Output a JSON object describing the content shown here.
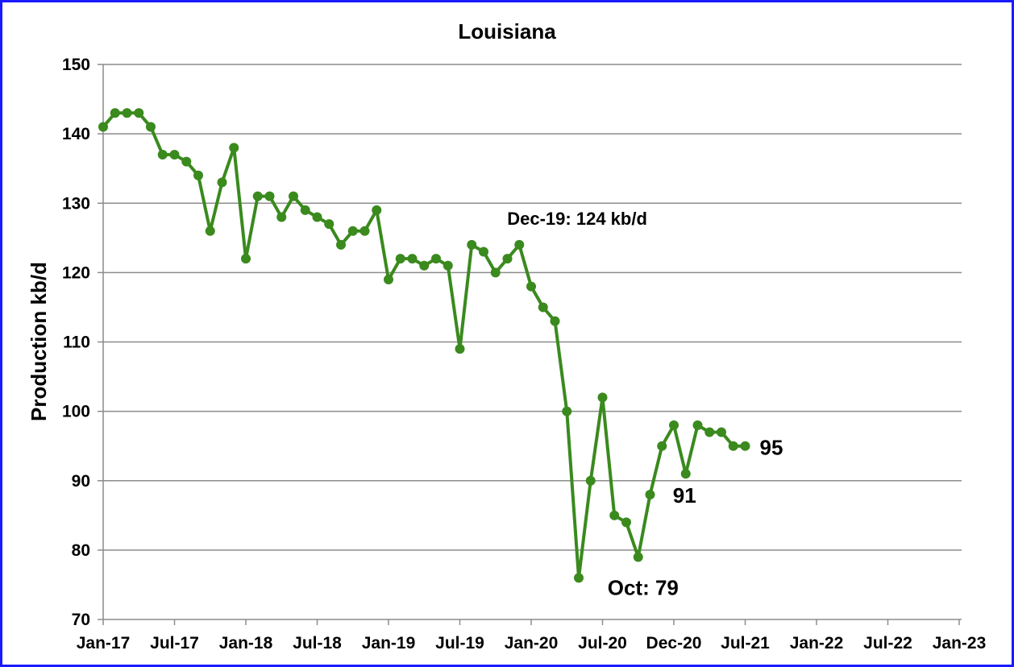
{
  "chart_data": {
    "type": "line",
    "title": "Louisiana",
    "xlabel": "",
    "ylabel": "Production kb/d",
    "ylim": [
      70,
      150
    ],
    "y_ticks": [
      70,
      80,
      90,
      100,
      110,
      120,
      130,
      140,
      150
    ],
    "x_tick_labels": [
      "Jan-17",
      "Jul-17",
      "Jan-18",
      "Jul-18",
      "Jan-19",
      "Jul-19",
      "Jan-20",
      "Jul-20",
      "Dec-20",
      "Jul-21",
      "Jan-22",
      "Jul-22",
      "Jan-23"
    ],
    "grid": "horizontal",
    "color": "#3a8a1e",
    "x": [
      "Jan-17",
      "Feb-17",
      "Mar-17",
      "Apr-17",
      "May-17",
      "Jun-17",
      "Jul-17",
      "Aug-17",
      "Sep-17",
      "Oct-17",
      "Nov-17",
      "Dec-17",
      "Jan-18",
      "Feb-18",
      "Mar-18",
      "Apr-18",
      "May-18",
      "Jun-18",
      "Jul-18",
      "Aug-18",
      "Sep-18",
      "Oct-18",
      "Nov-18",
      "Dec-18",
      "Jan-19",
      "Feb-19",
      "Mar-19",
      "Apr-19",
      "May-19",
      "Jun-19",
      "Jul-19",
      "Aug-19",
      "Sep-19",
      "Oct-19",
      "Nov-19",
      "Dec-19",
      "Jan-20",
      "Feb-20",
      "Mar-20",
      "Apr-20",
      "May-20",
      "Jun-20",
      "Jul-20",
      "Aug-20",
      "Sep-20",
      "Oct-20",
      "Nov-20",
      "Dec-20",
      "Jan-21",
      "Feb-21",
      "Mar-21",
      "Apr-21",
      "May-21",
      "Jun-21",
      "Jul-21"
    ],
    "series": [
      {
        "values": [
          141,
          143,
          143,
          143,
          141,
          137,
          137,
          136,
          134,
          126,
          133,
          138,
          122,
          131,
          131,
          128,
          131,
          129,
          128,
          127,
          124,
          126,
          126,
          129,
          119,
          122,
          122,
          121,
          122,
          121,
          109,
          124,
          123,
          120,
          122,
          124,
          118,
          115,
          113,
          100,
          76,
          90,
          102,
          85,
          84,
          79,
          88,
          95,
          98,
          91,
          98,
          97,
          97,
          95,
          95
        ]
      }
    ],
    "annotations": [
      {
        "text": "Dec-19: 124 kb/d",
        "x": "Dec-19",
        "y": 124
      },
      {
        "text": "Oct: 79",
        "x": "Oct-20",
        "y": 79
      },
      {
        "text": "91",
        "x": "Feb-21",
        "y": 91
      },
      {
        "text": "95",
        "x": "Jul-21",
        "y": 95
      }
    ]
  }
}
